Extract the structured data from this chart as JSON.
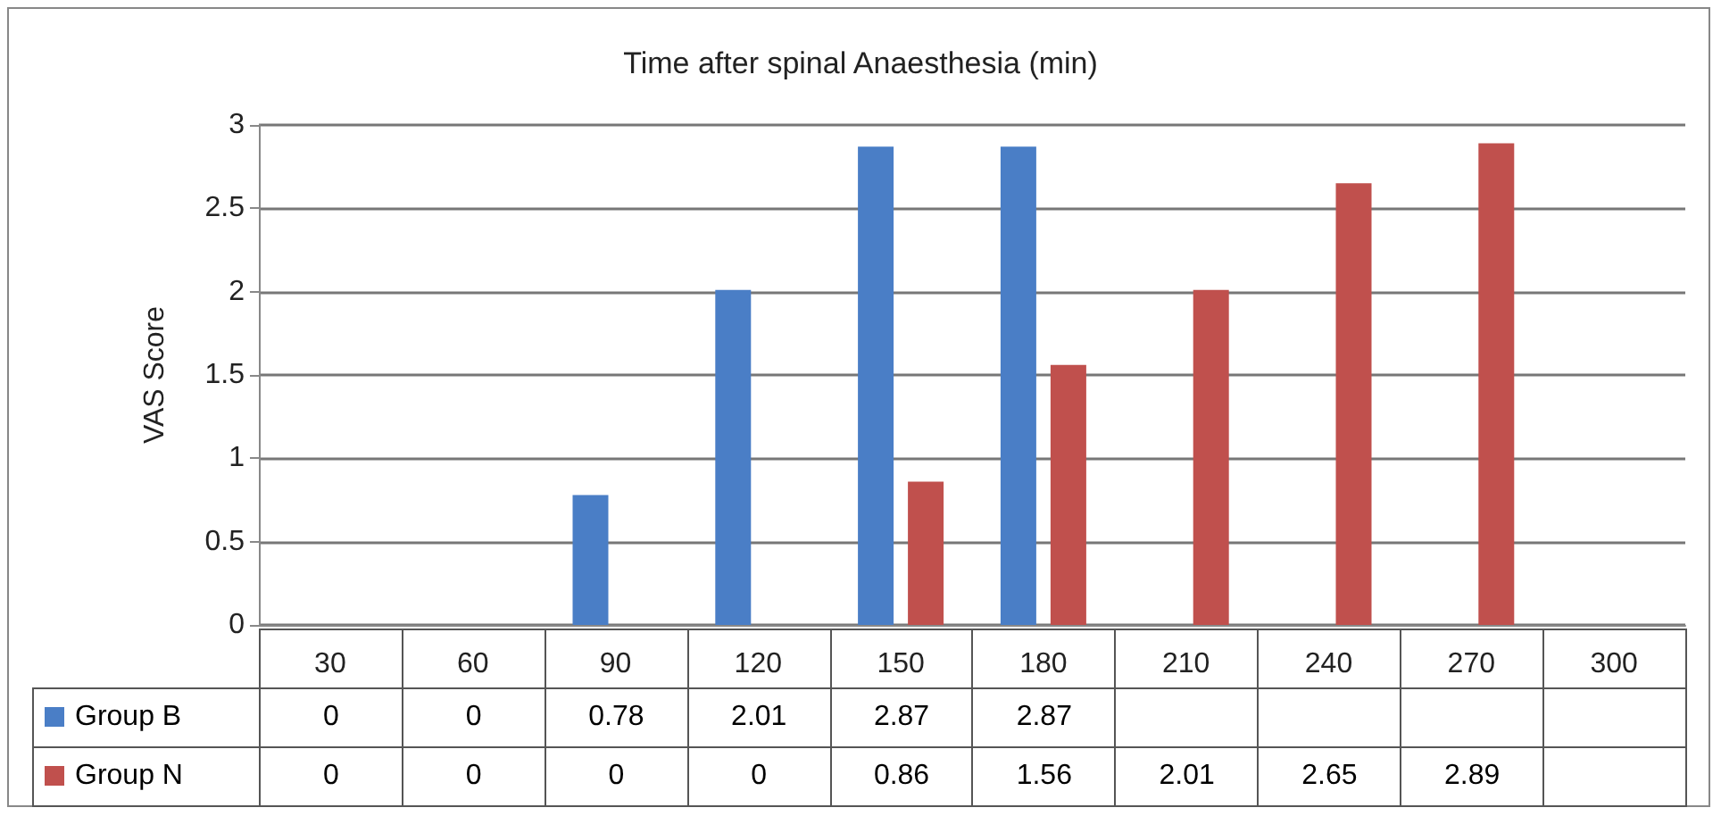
{
  "chart_data": {
    "type": "bar",
    "title": "Time after spinal Anaesthesia (min)",
    "ylabel": "VAS Score",
    "categories": [
      "30",
      "60",
      "90",
      "120",
      "150",
      "180",
      "210",
      "240",
      "270",
      "300"
    ],
    "series": [
      {
        "name": "Group B",
        "color": "#4a7ec6",
        "values": [
          0,
          0,
          0.78,
          2.01,
          2.87,
          2.87,
          null,
          null,
          null,
          null
        ]
      },
      {
        "name": "Group N",
        "color": "#c0504d",
        "values": [
          0,
          0,
          0,
          0,
          0.86,
          1.56,
          2.01,
          2.65,
          2.89,
          null
        ]
      }
    ],
    "ylim": [
      0,
      3
    ],
    "yticks": [
      0,
      0.5,
      1,
      1.5,
      2,
      2.5,
      3
    ],
    "grid": "y",
    "legend": "bottom",
    "data_labels": true
  }
}
